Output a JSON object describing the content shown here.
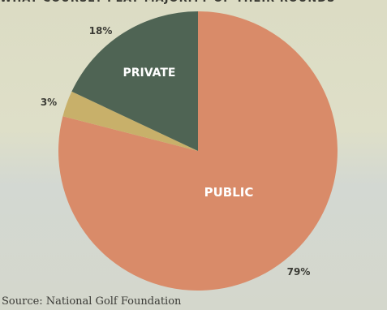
{
  "title": "WHAT COURSE? PLAY MAJORITY OF THEIR ROUNDS",
  "source": "Source: National Golf Foundation",
  "chart_data": {
    "type": "pie",
    "title": "WHAT COURSE? PLAY MAJORITY OF THEIR ROUNDS",
    "slices": [
      {
        "label": "PUBLIC",
        "value": 79,
        "value_label": "79%",
        "color": "#d98b69"
      },
      {
        "label": "",
        "value": 3,
        "value_label": "3%",
        "color": "#c8b06a"
      },
      {
        "label": "PRIVATE",
        "value": 18,
        "value_label": "18%",
        "color": "#4f6454"
      }
    ],
    "start": "12 o'clock",
    "direction": "clockwise",
    "legend": "none"
  }
}
